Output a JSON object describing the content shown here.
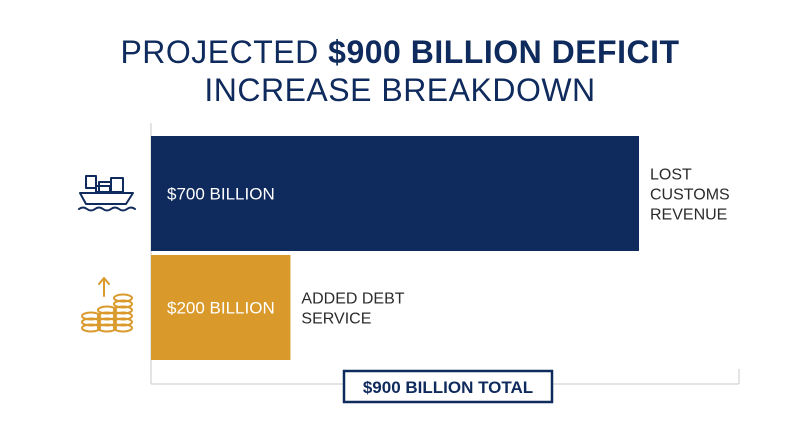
{
  "title": {
    "line1_prefix": "PROJECTED ",
    "line1_bold": "$900 BILLION DEFICIT",
    "line2": "INCREASE BREAKDOWN"
  },
  "chart_data": {
    "type": "bar",
    "orientation": "horizontal",
    "title": "PROJECTED $900 BILLION DEFICIT INCREASE BREAKDOWN",
    "categories": [
      "LOST CUSTOMS REVENUE",
      "ADDED DEBT SERVICE"
    ],
    "category_lines": [
      [
        "LOST",
        "CUSTOMS",
        "REVENUE"
      ],
      [
        "ADDED DEBT",
        "SERVICE"
      ]
    ],
    "values": [
      700,
      200
    ],
    "value_labels": [
      "$700 BILLION",
      "$200 BILLION"
    ],
    "icons": [
      "cargo-ship-icon",
      "coin-stacks-growth-icon"
    ],
    "colors": [
      "#0f2a5c",
      "#d99a2b"
    ],
    "xlim": [
      0,
      900
    ],
    "total_label": "$900 BILLION TOTAL",
    "grid": false
  }
}
